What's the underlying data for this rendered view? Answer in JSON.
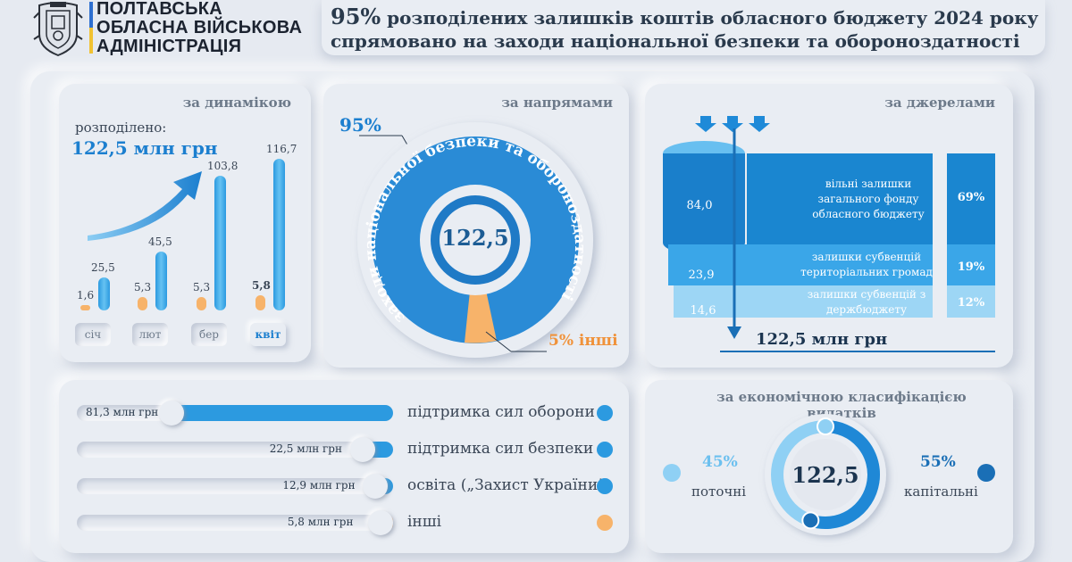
{
  "header": {
    "org_line1": "ПОЛТАВСЬКА",
    "org_line2": "ОБЛАСНА ВІЙСЬКОВА",
    "org_line3": "АДМІНІСТРАЦІЯ",
    "headline_pct": "95%",
    "headline_rest": " розподілених залишків коштів обласного бюджету 2024 року",
    "headline_line2": "спрямовано на заходи національної безпеки та обороноздатності"
  },
  "dynamics": {
    "title": "за динамікою",
    "distributed_label": "розподілено:",
    "distributed_value": "122,5 млн грн",
    "months": [
      {
        "label": "січ",
        "small": "1,6",
        "large": "25,5",
        "small_value": 1.6,
        "large_value": 25.5
      },
      {
        "label": "лют",
        "small": "5,3",
        "large": "45,5",
        "small_value": 5.3,
        "large_value": 45.5
      },
      {
        "label": "бер",
        "small": "5,3",
        "large": "103,8",
        "small_value": 5.3,
        "large_value": 103.8
      },
      {
        "label": "квіт",
        "small": "5,8",
        "large": "116,7",
        "small_value": 5.8,
        "large_value": 116.7
      }
    ]
  },
  "directions": {
    "title": "за напрямами",
    "main_pct": "95%",
    "ring_text": "заходи національної безпеки та обороноздатності",
    "center": "122,5",
    "other_label": "5% інші"
  },
  "sources": {
    "title": "за джерелами",
    "total": "122,5 млн грн",
    "rows": [
      {
        "value": "84,0",
        "label": "вільні залишки загального фонду обласного бюджету",
        "pct": "69%"
      },
      {
        "value": "23,9",
        "label": "залишки субвенцій територіальних громад",
        "pct": "19%"
      },
      {
        "value": "14,6",
        "label": "залишки субвенцій з держбюджету",
        "pct": "12%"
      }
    ]
  },
  "spending": {
    "items": [
      {
        "value": "81,3 млн грн",
        "label": "підтримка сил оборони",
        "amount": 81.3,
        "color": "#2c9ae0"
      },
      {
        "value": "22,5 млн грн",
        "label": "підтримка сил безпеки",
        "amount": 22.5,
        "color": "#2c9ae0"
      },
      {
        "value": "12,9 млн грн",
        "label": "освіта („Захист України”)",
        "amount": 12.9,
        "color": "#2c9ae0"
      },
      {
        "value": "5,8 млн грн",
        "label": "інші",
        "amount": 5.8,
        "color": "#f7b36a"
      }
    ]
  },
  "economic": {
    "title": "за економічною класифікацією видатків",
    "center": "122,5",
    "current_pct": "45%",
    "current_label": "поточні",
    "capital_pct": "55%",
    "capital_label": "капітальні"
  }
}
